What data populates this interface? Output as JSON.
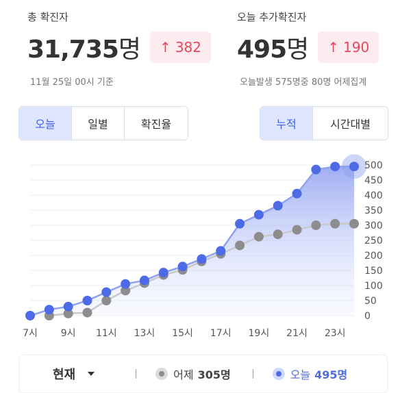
{
  "stats": {
    "total": {
      "label": "총 확진자",
      "value": "31,735",
      "unit": "명",
      "delta": "382",
      "sub": "11월 25일 00시 기준"
    },
    "today": {
      "label": "오늘 추가확진자",
      "value": "495",
      "unit": "명",
      "delta": "190",
      "sub": "오늘발생 575명중 80명 어제집계"
    }
  },
  "tabs_left": [
    "오늘",
    "일별",
    "확진율"
  ],
  "tabs_left_active": 0,
  "tabs_right": [
    "누적",
    "시간대별"
  ],
  "tabs_right_active": 0,
  "icons": {
    "delta_arrow": "up-arrow-icon",
    "dropdown": "chevron-down-icon"
  },
  "colors": {
    "accent": "#4d6be6",
    "accent_light": "#dfe6ff",
    "yesterday": "#8d8d8d",
    "delta_text": "#e8465e",
    "delta_bg": "#fdecef"
  },
  "legend": {
    "dropdown_label": "현재",
    "yesterday_label": "어제",
    "yesterday_value": "305명",
    "today_label": "오늘",
    "today_value": "495명"
  },
  "chart_data": {
    "type": "area",
    "x": [
      7,
      8,
      9,
      10,
      11,
      12,
      13,
      14,
      15,
      16,
      17,
      18,
      19,
      20,
      21,
      22,
      23,
      24
    ],
    "x_tick_labels": [
      "7시",
      "9시",
      "11시",
      "13시",
      "15시",
      "17시",
      "19시",
      "21시",
      "23시"
    ],
    "x_tick_values": [
      7,
      9,
      11,
      13,
      15,
      17,
      19,
      21,
      23
    ],
    "y_ticks": [
      0,
      50,
      100,
      150,
      200,
      250,
      300,
      350,
      400,
      450,
      500
    ],
    "ylim": [
      0,
      500
    ],
    "y_axis_position": "right",
    "grid": true,
    "series": [
      {
        "name": "어제",
        "values": [
          null,
          0,
          7,
          10,
          50,
          83,
          108,
          135,
          152,
          180,
          205,
          233,
          262,
          270,
          285,
          300,
          305,
          305
        ],
        "color": "#8d8d8d"
      },
      {
        "name": "오늘",
        "values": [
          0,
          20,
          30,
          50,
          78,
          105,
          117,
          143,
          163,
          188,
          215,
          305,
          335,
          365,
          405,
          485,
          495,
          495
        ],
        "color": "#4d6be6",
        "highlight_last": true
      }
    ]
  }
}
